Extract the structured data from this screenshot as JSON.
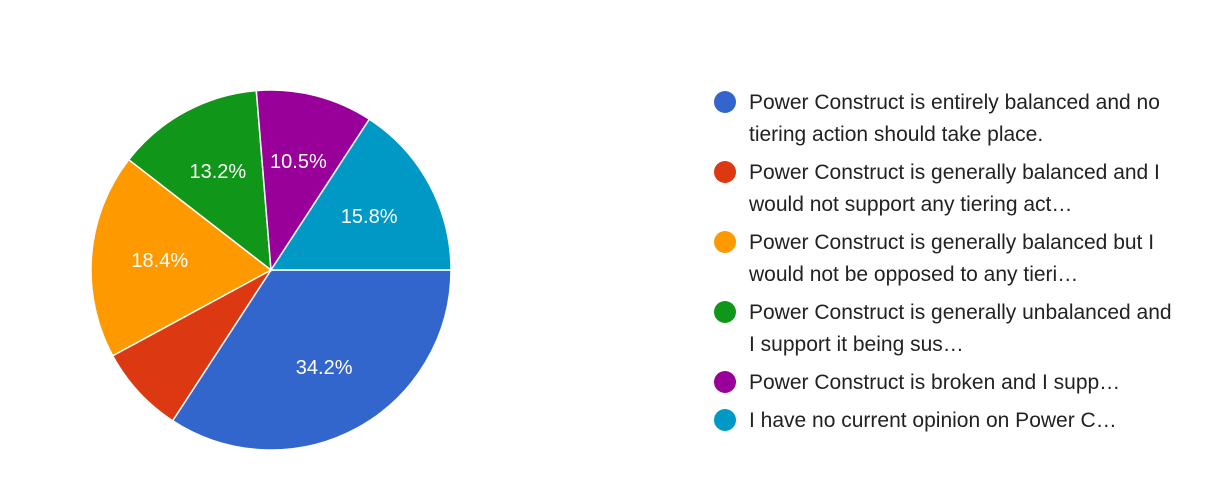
{
  "chart_data": {
    "type": "pie",
    "slices": [
      {
        "label": "Power Construct is entirely balanced and no tiering action should take place.",
        "display": "Power Construct is entirely balanced and no tiering action should take place.",
        "value": 34.2,
        "value_label": "34.2%",
        "color": "#3366cc"
      },
      {
        "label": "Power Construct is generally balanced and I would not support any tiering act…",
        "display": "Power Construct is generally balanced and I would not support any tiering act…",
        "value": 7.9,
        "value_label": "",
        "color": "#dc3912"
      },
      {
        "label": "Power Construct is generally balanced but I would not be opposed to any tieri…",
        "display": "Power Construct is generally balanced but I would not be opposed to any tieri…",
        "value": 18.4,
        "value_label": "18.4%",
        "color": "#ff9900"
      },
      {
        "label": "Power Construct is generally unbalanced and I support it being sus…",
        "display": "Power Construct is generally unbalanced and I support it being sus…",
        "value": 13.2,
        "value_label": "13.2%",
        "color": "#109618"
      },
      {
        "label": "Power Construct is broken and I supp…",
        "display": "Power Construct is broken and I supp…",
        "value": 10.5,
        "value_label": "10.5%",
        "color": "#990099"
      },
      {
        "label": "I have no current opinion on Power C…",
        "display": "I have no current opinion on Power C…",
        "value": 15.8,
        "value_label": "15.8%",
        "color": "#0099c6"
      }
    ],
    "start_angle_deg": 90,
    "direction": "clockwise",
    "legend_position": "right"
  }
}
